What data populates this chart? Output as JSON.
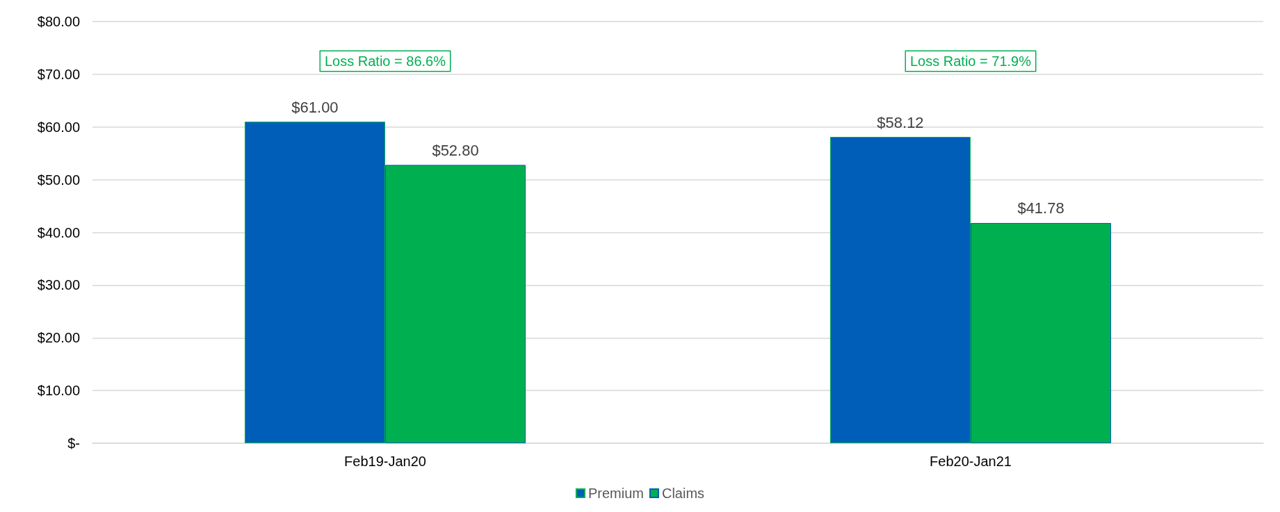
{
  "chart_data": {
    "type": "bar",
    "categories": [
      "Feb19-Jan20",
      "Feb20-Jan21"
    ],
    "series": [
      {
        "name": "Premium",
        "color": "#005eb8",
        "values": [
          61.0,
          58.12
        ],
        "value_labels": [
          "$61.00",
          "$58.12"
        ]
      },
      {
        "name": "Claims",
        "color": "#00b050",
        "values": [
          52.8,
          41.78
        ],
        "value_labels": [
          "$52.80",
          "$41.78"
        ]
      }
    ],
    "ylim": [
      0,
      80
    ],
    "yticks": [
      {
        "value": 0,
        "label": "$-"
      },
      {
        "value": 10,
        "label": "$10.00"
      },
      {
        "value": 20,
        "label": "$20.00"
      },
      {
        "value": 30,
        "label": "$30.00"
      },
      {
        "value": 40,
        "label": "$40.00"
      },
      {
        "value": 50,
        "label": "$50.00"
      },
      {
        "value": 60,
        "label": "$60.00"
      },
      {
        "value": 70,
        "label": "$70.00"
      },
      {
        "value": 80,
        "label": "$80.00"
      }
    ],
    "annotations": [
      "Loss Ratio = 86.6%",
      "Loss Ratio = 71.9%"
    ],
    "grid": "y",
    "legend": "bottom"
  }
}
